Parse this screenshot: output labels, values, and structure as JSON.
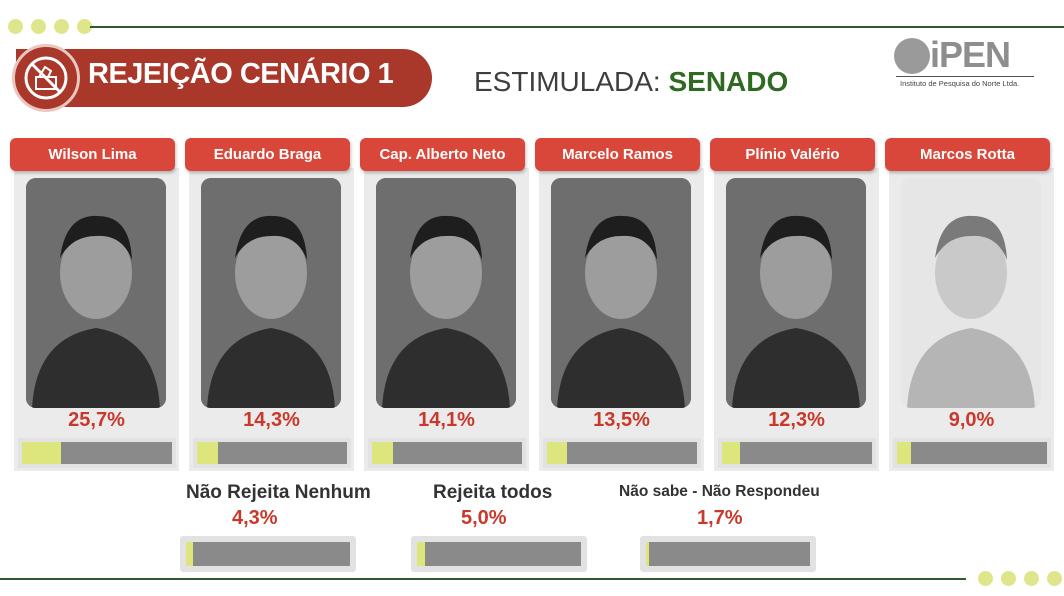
{
  "header": {
    "title": "REJEIÇÃO CENÁRIO 1",
    "subtitle_prefix": "ESTIMULADA:",
    "subtitle_highlight": "SENADO",
    "title_icon": "no-voting-icon"
  },
  "logo": {
    "text": "iPEN",
    "tagline": "Instituto de Pesquisa do Norte Ltda."
  },
  "colors": {
    "accent_red": "#d9473a",
    "title_red": "#a9372a",
    "value_red": "#c9392b",
    "green": "#2f6a22",
    "bar_fill": "#dde57d",
    "bar_track": "#8a8a8a"
  },
  "chart_data": {
    "type": "bar",
    "title": "REJEIÇÃO CENÁRIO 1",
    "subtitle": "ESTIMULADA: SENADO",
    "unit": "%",
    "ylim": [
      0,
      100
    ],
    "categories": [
      "Wilson Lima",
      "Eduardo Braga",
      "Cap. Alberto Neto",
      "Marcelo Ramos",
      "Plínio Valério",
      "Marcos Rotta"
    ],
    "values": [
      25.7,
      14.3,
      14.1,
      13.5,
      12.3,
      9.0
    ],
    "value_labels": [
      "25,7%",
      "14,3%",
      "14,1%",
      "13,5%",
      "12,3%",
      "9,0%"
    ],
    "extra": [
      {
        "label": "Não Rejeita Nenhum",
        "value": 4.3,
        "value_label": "4,3%"
      },
      {
        "label": "Rejeita todos",
        "value": 5.0,
        "value_label": "5,0%"
      },
      {
        "label": "Não sabe - Não Respondeu",
        "value": 1.7,
        "value_label": "1,7%"
      }
    ]
  }
}
